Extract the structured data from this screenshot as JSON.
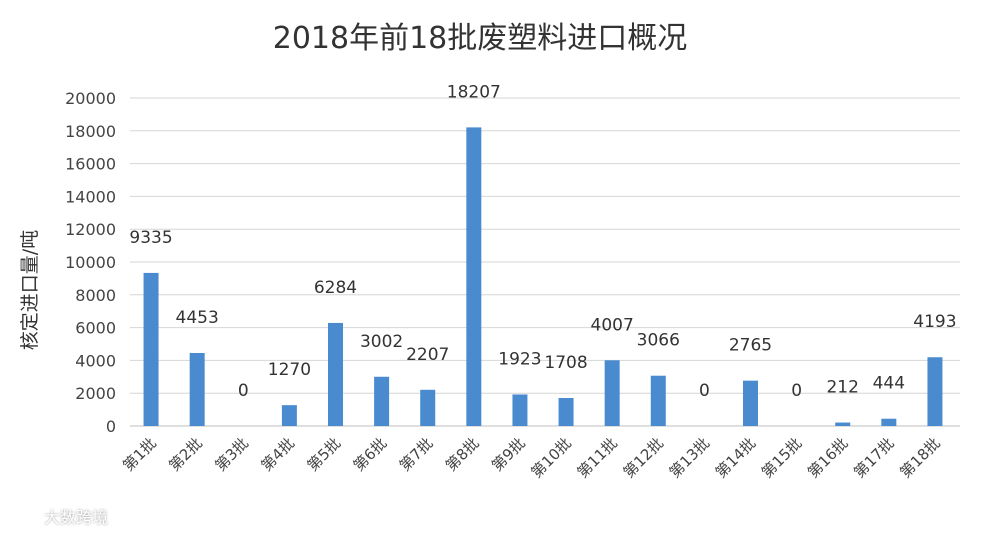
{
  "chart_data": {
    "type": "bar",
    "title": "2018年前18批废塑料进口概况",
    "xlabel": "",
    "ylabel": "核定进口量/吨",
    "ylim": [
      0,
      20000
    ],
    "yticks": [
      0,
      2000,
      4000,
      6000,
      8000,
      10000,
      12000,
      14000,
      16000,
      18000,
      20000
    ],
    "grid": true,
    "legend": "none",
    "bar_color": "#4a8bd0",
    "categories": [
      "第1批",
      "第2批",
      "第3批",
      "第4批",
      "第5批",
      "第6批",
      "第7批",
      "第8批",
      "第9批",
      "第10批",
      "第11批",
      "第12批",
      "第13批",
      "第14批",
      "第15批",
      "第16批",
      "第17批",
      "第18批"
    ],
    "values": [
      9335,
      4453,
      0,
      1270,
      6284,
      3002,
      2207,
      18207,
      1923,
      1708,
      4007,
      3066,
      0,
      2765,
      0,
      212,
      444,
      4193
    ],
    "data_labels": [
      "9335",
      "4453",
      "0",
      "1270",
      "6284",
      "3002",
      "2207",
      "18207",
      "1923",
      "1708",
      "4007",
      "3066",
      "0",
      "2765",
      "0",
      "212",
      "444",
      "4193"
    ]
  },
  "watermark": {
    "text": "大数跨境",
    "icon": "dashuju-logo-icon"
  }
}
